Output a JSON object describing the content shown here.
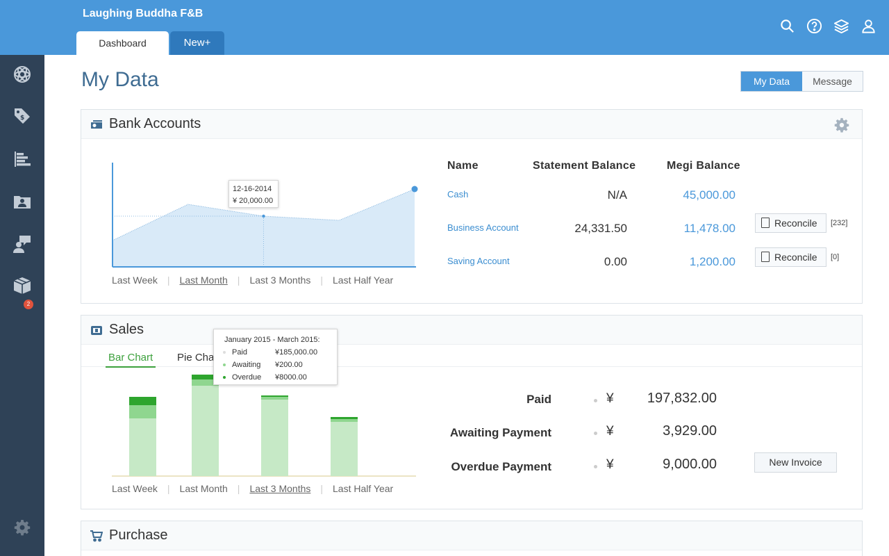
{
  "app": {
    "title": "Laughing Buddha F&B"
  },
  "tabs": [
    {
      "label": "Dashboard",
      "active": true
    },
    {
      "label": "New+",
      "active": false
    }
  ],
  "top_icons": [
    "search-icon",
    "help-icon",
    "layers-icon",
    "user-icon"
  ],
  "sidebar": {
    "items": [
      "atom-icon",
      "tags-icon",
      "bar-list-icon",
      "contacts-folder-icon",
      "chat-user-icon",
      "box-icon"
    ],
    "badge": "2",
    "settings": "gear-icon"
  },
  "page": {
    "title": "My Data"
  },
  "view_toggle": {
    "my_data": "My Data",
    "message": "Message"
  },
  "bank": {
    "title": "Bank Accounts",
    "range_tabs": [
      "Last Week",
      "Last Month",
      "Last 3 Months",
      "Last Half Year"
    ],
    "selected_range": "Last Month",
    "tooltip": {
      "date": "12-16-2014",
      "value": "¥ 20,000.00"
    },
    "chart_data": {
      "type": "area",
      "series": [
        {
          "values": [
            38,
            90,
            73,
            67,
            112
          ]
        }
      ],
      "ylim": [
        0,
        160
      ]
    },
    "table": {
      "headers": {
        "name": "Name",
        "statement": "Statement Balance",
        "megi": "Megi Balance"
      },
      "rows": [
        {
          "name": "Cash",
          "statement": "N/A",
          "megi": "45,000.00"
        },
        {
          "name": "Business Account",
          "statement": "24,331.50",
          "megi": "11,478.00",
          "action": "Reconcile",
          "count": "[232]"
        },
        {
          "name": "Saving Account",
          "statement": "0.00",
          "megi": "1,200.00",
          "action": "Reconcile",
          "count": "[0]"
        }
      ]
    }
  },
  "sales": {
    "title": "Sales",
    "subtabs": {
      "bar": "Bar Chart",
      "pie": "Pie Chart"
    },
    "range_tabs": [
      "Last Week",
      "Last Month",
      "Last 3 Months",
      "Last Half Year"
    ],
    "selected_range": "Last 3 Months",
    "tooltip": {
      "title": "January 2015 - March 2015:",
      "rows": [
        {
          "label": "Paid",
          "value": "¥185,000.00"
        },
        {
          "label": "Awaiting",
          "value": "¥200.00"
        },
        {
          "label": "Overdue",
          "value": "¥8000.00"
        }
      ]
    },
    "chart_data": {
      "type": "bar",
      "categories": [
        "Last Week",
        "Last Month",
        "Last 3 Months",
        "Last Half Year"
      ],
      "series": [
        {
          "name": "Paid",
          "values": [
            83,
            130,
            110,
            78
          ]
        },
        {
          "name": "Awaiting",
          "values": [
            19,
            9,
            4,
            4
          ]
        },
        {
          "name": "Overdue",
          "values": [
            12,
            7,
            2,
            3
          ]
        }
      ],
      "colors": {
        "Paid": "#c6e9c6",
        "Awaiting": "#8fd68f",
        "Overdue": "#2ea52e"
      }
    },
    "summary": [
      {
        "label": "Paid",
        "currency": "¥",
        "value": "197,832.00"
      },
      {
        "label": "Awaiting Payment",
        "currency": "¥",
        "value": "3,929.00"
      },
      {
        "label": "Overdue Payment",
        "currency": "¥",
        "value": "9,000.00"
      }
    ],
    "new_invoice": "New Invoice"
  },
  "purchase": {
    "title": "Purchase"
  }
}
